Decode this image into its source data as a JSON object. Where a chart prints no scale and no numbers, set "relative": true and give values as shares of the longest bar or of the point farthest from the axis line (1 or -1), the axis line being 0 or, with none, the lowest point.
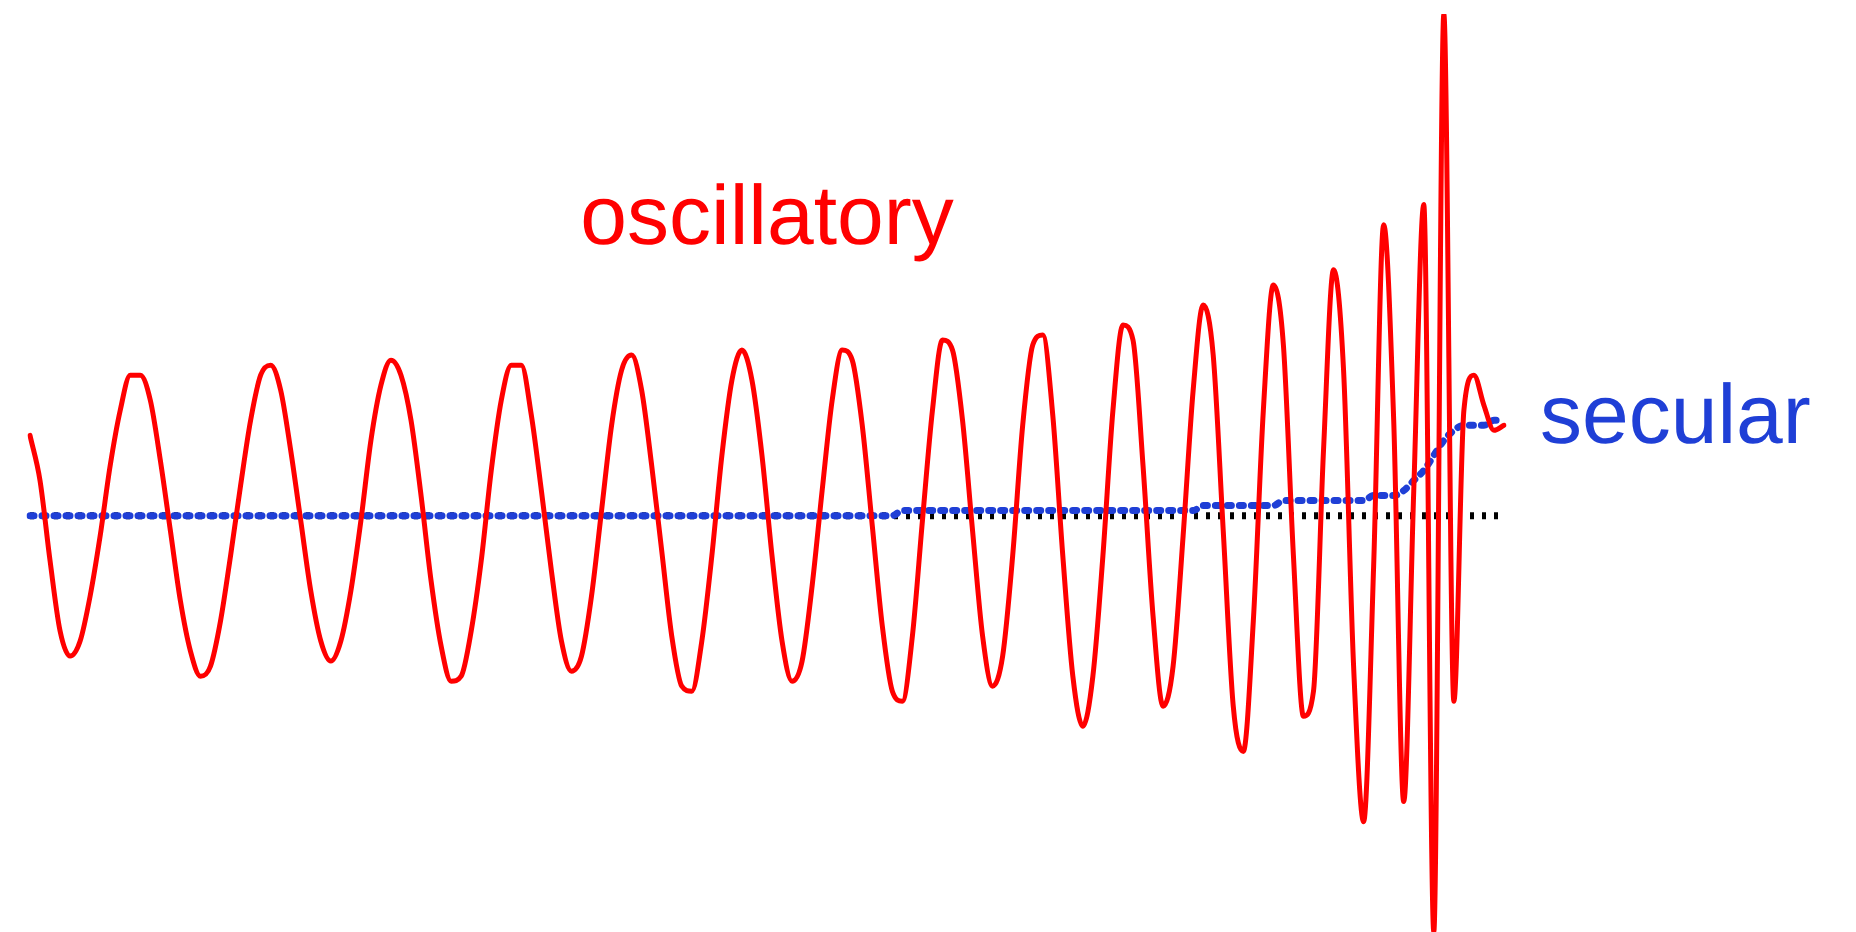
{
  "chart_data": {
    "type": "line",
    "relative": true,
    "legend": false,
    "marker": "none",
    "ref_lines": [
      {
        "axis": "y",
        "value": 0,
        "color": "#000000",
        "line_style": "dotted"
      }
    ],
    "categories": [
      null,
      null,
      null,
      null,
      null,
      null,
      null,
      null,
      null,
      null,
      null,
      null,
      null,
      null,
      null,
      null,
      null,
      null,
      null,
      null,
      null,
      null,
      null,
      null,
      null,
      null,
      null,
      null,
      null,
      null,
      null,
      null,
      null,
      null,
      null,
      null,
      null,
      null,
      null,
      null,
      null,
      null,
      null,
      null,
      null,
      null,
      null,
      null,
      null,
      null,
      null,
      null,
      null,
      null,
      null,
      null,
      null,
      null,
      null,
      null,
      null,
      null,
      null,
      null,
      null,
      null,
      null,
      null,
      null,
      null,
      null,
      null,
      null,
      null,
      null,
      null,
      null,
      null,
      null,
      null,
      null,
      null,
      null,
      null,
      null,
      null,
      null,
      null,
      null,
      null,
      null,
      null,
      null,
      null,
      null,
      null,
      null,
      null,
      null,
      null,
      null,
      null,
      null,
      null,
      null,
      null,
      null,
      null,
      null,
      null,
      null,
      null,
      null,
      null,
      null,
      null,
      null,
      null,
      null,
      null,
      null,
      null,
      null,
      null,
      null,
      null,
      null,
      null,
      null,
      null,
      null,
      null,
      null,
      null,
      null,
      null,
      null,
      null,
      null,
      null,
      null,
      null,
      null,
      null,
      null,
      null,
      null,
      null
    ],
    "series": [
      {
        "name": "oscillatory",
        "color": "#ff0000",
        "line_style": "solid",
        "values": [
          0.16,
          0.07,
          -0.09,
          -0.23,
          -0.28,
          -0.25,
          -0.16,
          -0.04,
          0.1,
          0.21,
          0.28,
          0.28,
          0.23,
          0.11,
          -0.03,
          -0.17,
          -0.27,
          -0.32,
          -0.3,
          -0.21,
          -0.08,
          0.06,
          0.19,
          0.28,
          0.3,
          0.25,
          0.13,
          -0.01,
          -0.15,
          -0.25,
          -0.29,
          -0.25,
          -0.15,
          -0.01,
          0.15,
          0.26,
          0.31,
          0.28,
          0.19,
          0.04,
          -0.13,
          -0.26,
          -0.33,
          -0.32,
          -0.23,
          -0.09,
          0.09,
          0.23,
          0.3,
          0.3,
          0.2,
          0.05,
          -0.11,
          -0.25,
          -0.31,
          -0.28,
          -0.16,
          0.01,
          0.18,
          0.29,
          0.32,
          0.25,
          0.1,
          -0.07,
          -0.24,
          -0.34,
          -0.35,
          -0.25,
          -0.08,
          0.12,
          0.27,
          0.33,
          0.27,
          0.12,
          -0.08,
          -0.25,
          -0.33,
          -0.29,
          -0.14,
          0.05,
          0.23,
          0.33,
          0.31,
          0.18,
          -0.02,
          -0.22,
          -0.35,
          -0.37,
          -0.24,
          -0.01,
          0.21,
          0.35,
          0.33,
          0.19,
          -0.03,
          -0.24,
          -0.34,
          -0.28,
          -0.08,
          0.18,
          0.34,
          0.36,
          0.2,
          -0.08,
          -0.32,
          -0.42,
          -0.32,
          -0.08,
          0.21,
          0.38,
          0.35,
          0.1,
          -0.2,
          -0.38,
          -0.3,
          -0.04,
          0.25,
          0.42,
          0.32,
          -0.03,
          -0.38,
          -0.47,
          -0.21,
          0.21,
          0.46,
          0.34,
          -0.08,
          -0.4,
          -0.35,
          0.13,
          0.49,
          0.29,
          -0.3,
          -0.61,
          -0.1,
          0.58,
          0.19,
          -0.57,
          0.05,
          0.62,
          -0.83,
          1,
          -0.37,
          0.21,
          0.28,
          0.22,
          0.17,
          0.18
        ]
      },
      {
        "name": "secular",
        "color": "#1f3fd6",
        "line_style": "dotted",
        "values": [
          0,
          0,
          0,
          0,
          0,
          0,
          0,
          0,
          0,
          0,
          0,
          0,
          0,
          0,
          0,
          0,
          0,
          0,
          0,
          0,
          0,
          0,
          0,
          0,
          0,
          0,
          0,
          0,
          0,
          0,
          0,
          0,
          0,
          0,
          0,
          0,
          0,
          0,
          0,
          0,
          0,
          0,
          0,
          0,
          0,
          0,
          0,
          0,
          0,
          0,
          0,
          0,
          0,
          0,
          0,
          0,
          0,
          0,
          0,
          0,
          0,
          0,
          0,
          0,
          0,
          0,
          0,
          0,
          0,
          0,
          0,
          0,
          0,
          0,
          0,
          0,
          0,
          0,
          0,
          0,
          0,
          0,
          0,
          0,
          0,
          0,
          0,
          0.01,
          0.01,
          0.01,
          0.01,
          0.01,
          0.01,
          0.01,
          0.01,
          0.01,
          0.01,
          0.01,
          0.01,
          0.01,
          0.01,
          0.01,
          0.01,
          0.01,
          0.01,
          0.01,
          0.01,
          0.01,
          0.01,
          0.01,
          0.01,
          0.01,
          0.01,
          0.01,
          0.01,
          0.01,
          0.01,
          0.02,
          0.02,
          0.02,
          0.02,
          0.02,
          0.02,
          0.02,
          0.02,
          0.03,
          0.03,
          0.03,
          0.03,
          0.03,
          0.03,
          0.03,
          0.03,
          0.03,
          0.04,
          0.04,
          0.04,
          0.05,
          0.07,
          0.09,
          0.12,
          0.15,
          0.17,
          0.18,
          0.18,
          0.18,
          0.19,
          0.19
        ]
      }
    ]
  }
}
